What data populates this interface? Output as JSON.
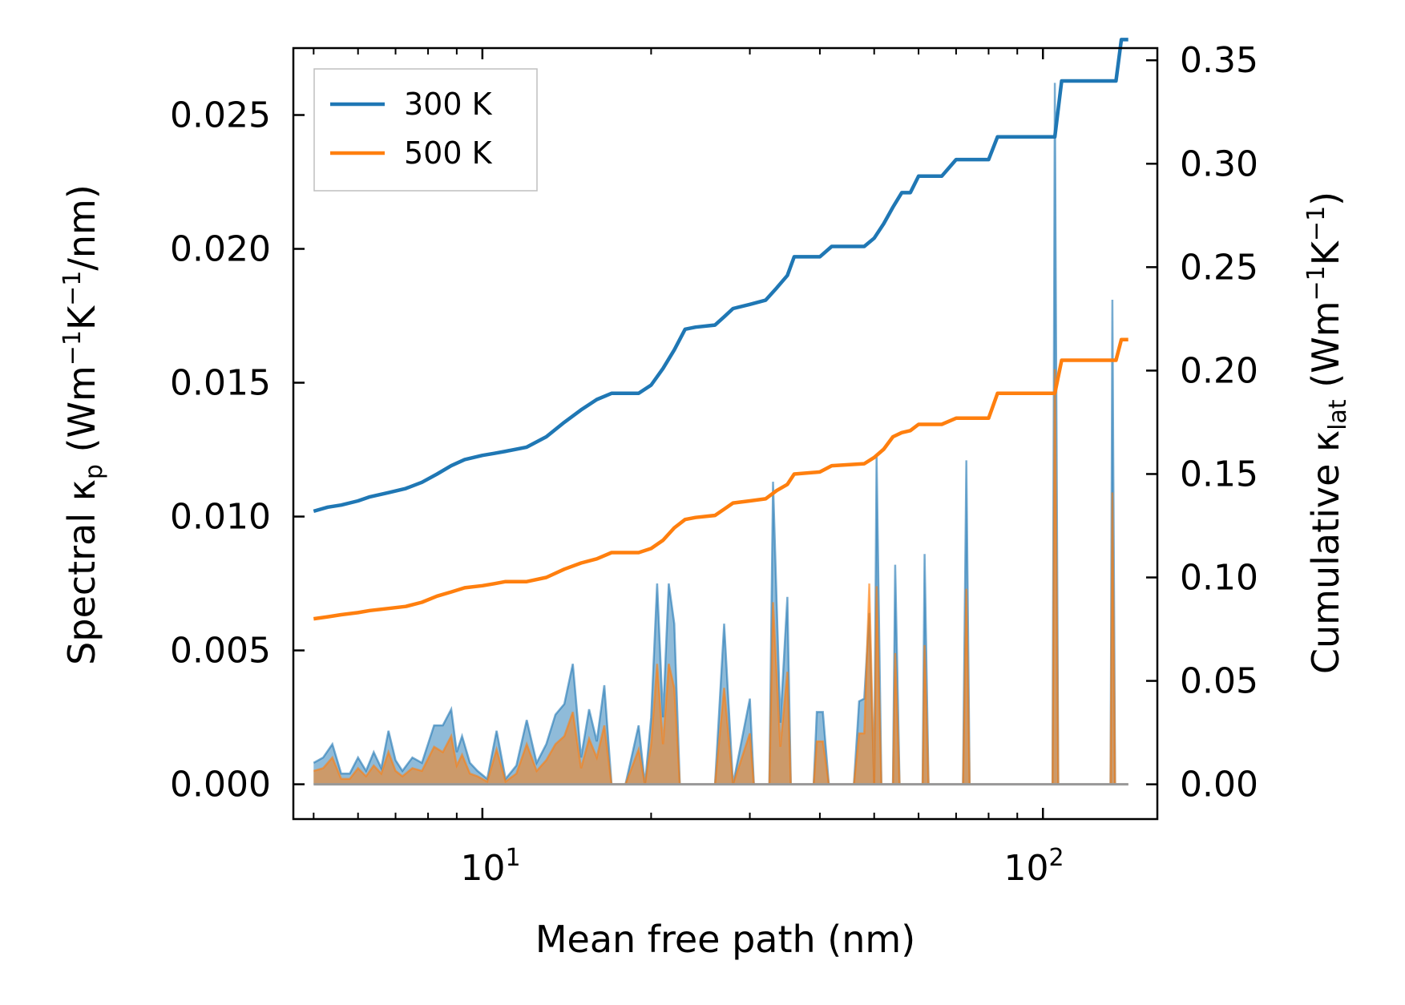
{
  "chart_data": {
    "type": "line",
    "title": "",
    "xlabel": "Mean free path (nm)",
    "xscale": "log",
    "xlim": [
      4.6,
      160
    ],
    "x_tick_labels": [
      {
        "base": "10",
        "exp": "1",
        "value": 10
      },
      {
        "base": "10",
        "exp": "2",
        "value": 100
      }
    ],
    "left_axis": {
      "label_prefix": "Spectral ",
      "label_symbol": "κ",
      "label_symbol_sub": "p",
      "label_unit_parts": [
        " (Wm",
        "−1",
        "K",
        "−1",
        "/nm)"
      ],
      "ylim": [
        -0.0013,
        0.0275
      ],
      "ticks": [
        "0.000",
        "0.005",
        "0.010",
        "0.015",
        "0.020",
        "0.025"
      ],
      "tick_values": [
        0,
        0.005,
        0.01,
        0.015,
        0.02,
        0.025
      ]
    },
    "right_axis": {
      "label_prefix": "Cumulative ",
      "label_symbol": "κ",
      "label_symbol_sub": "lat",
      "label_unit_parts": [
        " (Wm",
        "−1",
        "K",
        "−1",
        ")"
      ],
      "ylim": [
        -0.0168,
        0.3559
      ],
      "ticks": [
        "0.00",
        "0.05",
        "0.10",
        "0.15",
        "0.20",
        "0.25",
        "0.30",
        "0.35"
      ],
      "tick_values": [
        0,
        0.05,
        0.1,
        0.15,
        0.2,
        0.25,
        0.3,
        0.35
      ]
    },
    "legend": {
      "position": "top-left",
      "entries": [
        {
          "label": "300 K",
          "color": "#1f77b4"
        },
        {
          "label": "500 K",
          "color": "#ff7f0e"
        }
      ]
    },
    "series": [
      {
        "name": "300 K",
        "color": "#1f77b4",
        "cumulative_kappa": [
          [
            5.0,
            0.132
          ],
          [
            5.3,
            0.134
          ],
          [
            5.6,
            0.135
          ],
          [
            6.0,
            0.137
          ],
          [
            6.3,
            0.139
          ],
          [
            6.8,
            0.141
          ],
          [
            7.3,
            0.143
          ],
          [
            7.8,
            0.146
          ],
          [
            8.3,
            0.15
          ],
          [
            8.8,
            0.154
          ],
          [
            9.3,
            0.157
          ],
          [
            10.0,
            0.159
          ],
          [
            10.5,
            0.16
          ],
          [
            11.0,
            0.161
          ],
          [
            12.0,
            0.163
          ],
          [
            13.0,
            0.168
          ],
          [
            14.0,
            0.175
          ],
          [
            15.0,
            0.181
          ],
          [
            16.0,
            0.186
          ],
          [
            17.0,
            0.189
          ],
          [
            19.0,
            0.189
          ],
          [
            20.0,
            0.193
          ],
          [
            21.0,
            0.201
          ],
          [
            22.0,
            0.21
          ],
          [
            23.0,
            0.22
          ],
          [
            24.0,
            0.221
          ],
          [
            26.0,
            0.222
          ],
          [
            27.0,
            0.226
          ],
          [
            28.0,
            0.23
          ],
          [
            30.0,
            0.232
          ],
          [
            32.0,
            0.234
          ],
          [
            33.5,
            0.24
          ],
          [
            35.0,
            0.246
          ],
          [
            36.0,
            0.255
          ],
          [
            40.0,
            0.255
          ],
          [
            42.0,
            0.26
          ],
          [
            48.0,
            0.26
          ],
          [
            50.0,
            0.264
          ],
          [
            52.0,
            0.271
          ],
          [
            54.0,
            0.279
          ],
          [
            56.0,
            0.286
          ],
          [
            58.0,
            0.286
          ],
          [
            60.0,
            0.294
          ],
          [
            66.0,
            0.294
          ],
          [
            70.0,
            0.302
          ],
          [
            80.0,
            0.302
          ],
          [
            83.0,
            0.313
          ],
          [
            105.0,
            0.313
          ],
          [
            108.0,
            0.34
          ],
          [
            135.0,
            0.34
          ],
          [
            138.0,
            0.36
          ],
          [
            142.0,
            0.36
          ]
        ],
        "spectral_kappa": [
          [
            5.0,
            0.0008
          ],
          [
            5.2,
            0.001
          ],
          [
            5.4,
            0.0015
          ],
          [
            5.6,
            0.0004
          ],
          [
            5.8,
            0.0004
          ],
          [
            6.0,
            0.001
          ],
          [
            6.2,
            0.0005
          ],
          [
            6.4,
            0.0012
          ],
          [
            6.6,
            0.0006
          ],
          [
            6.8,
            0.002
          ],
          [
            7.0,
            0.0009
          ],
          [
            7.2,
            0.0005
          ],
          [
            7.5,
            0.001
          ],
          [
            7.8,
            0.0008
          ],
          [
            8.2,
            0.0022
          ],
          [
            8.5,
            0.0022
          ],
          [
            8.8,
            0.0028
          ],
          [
            9.0,
            0.0012
          ],
          [
            9.2,
            0.0018
          ],
          [
            9.5,
            0.0008
          ],
          [
            9.8,
            0.0005
          ],
          [
            10.2,
            0.0002
          ],
          [
            10.6,
            0.002
          ],
          [
            11.0,
            0.0002
          ],
          [
            11.5,
            0.0007
          ],
          [
            12.0,
            0.0024
          ],
          [
            12.5,
            0.0008
          ],
          [
            13.0,
            0.0015
          ],
          [
            13.5,
            0.0026
          ],
          [
            14.0,
            0.003
          ],
          [
            14.5,
            0.0045
          ],
          [
            15.0,
            0.001
          ],
          [
            15.5,
            0.0028
          ],
          [
            16.0,
            0.0016
          ],
          [
            16.5,
            0.0037
          ],
          [
            17.0,
            0.0
          ],
          [
            18.0,
            0.0
          ],
          [
            19.0,
            0.0022
          ],
          [
            19.5,
            0.0
          ],
          [
            20.0,
            0.0025
          ],
          [
            20.5,
            0.0075
          ],
          [
            21.0,
            0.0025
          ],
          [
            21.5,
            0.0075
          ],
          [
            22.0,
            0.006
          ],
          [
            22.5,
            0.0
          ],
          [
            26.0,
            0.0
          ],
          [
            27.0,
            0.006
          ],
          [
            28.0,
            0.0
          ],
          [
            30.0,
            0.0032
          ],
          [
            30.5,
            0.0
          ],
          [
            32.5,
            0.0
          ],
          [
            33.0,
            0.0113
          ],
          [
            34.0,
            0.0023
          ],
          [
            35.0,
            0.007
          ],
          [
            35.5,
            0.0
          ],
          [
            39.0,
            0.0
          ],
          [
            39.5,
            0.0027
          ],
          [
            40.5,
            0.0027
          ],
          [
            41.5,
            0.0
          ],
          [
            46.0,
            0.0
          ],
          [
            47.0,
            0.0031
          ],
          [
            48.0,
            0.0032
          ],
          [
            49.0,
            0.0064
          ],
          [
            50.0,
            0.0
          ],
          [
            50.5,
            0.0123
          ],
          [
            51.5,
            0.0
          ],
          [
            54.0,
            0.0
          ],
          [
            54.5,
            0.0082
          ],
          [
            55.5,
            0.0
          ],
          [
            61.0,
            0.0
          ],
          [
            61.5,
            0.0086
          ],
          [
            62.5,
            0.0
          ],
          [
            72.0,
            0.0
          ],
          [
            73.0,
            0.0121
          ],
          [
            74.0,
            0.0
          ],
          [
            104.0,
            0.0
          ],
          [
            105.0,
            0.0262
          ],
          [
            106.5,
            0.0
          ],
          [
            132.0,
            0.0
          ],
          [
            133.0,
            0.0181
          ],
          [
            134.5,
            0.0
          ],
          [
            142.0,
            0.0
          ]
        ]
      },
      {
        "name": "500 K",
        "color": "#ff7f0e",
        "cumulative_kappa": [
          [
            5.0,
            0.08
          ],
          [
            5.3,
            0.081
          ],
          [
            5.6,
            0.082
          ],
          [
            6.0,
            0.083
          ],
          [
            6.3,
            0.084
          ],
          [
            6.8,
            0.085
          ],
          [
            7.3,
            0.086
          ],
          [
            7.8,
            0.088
          ],
          [
            8.3,
            0.091
          ],
          [
            8.8,
            0.093
          ],
          [
            9.3,
            0.095
          ],
          [
            10.0,
            0.096
          ],
          [
            10.5,
            0.097
          ],
          [
            11.0,
            0.098
          ],
          [
            12.0,
            0.098
          ],
          [
            13.0,
            0.1
          ],
          [
            14.0,
            0.104
          ],
          [
            15.0,
            0.107
          ],
          [
            16.0,
            0.109
          ],
          [
            17.0,
            0.112
          ],
          [
            19.0,
            0.112
          ],
          [
            20.0,
            0.114
          ],
          [
            21.0,
            0.118
          ],
          [
            22.0,
            0.124
          ],
          [
            23.0,
            0.128
          ],
          [
            24.0,
            0.129
          ],
          [
            26.0,
            0.13
          ],
          [
            27.0,
            0.133
          ],
          [
            28.0,
            0.136
          ],
          [
            30.0,
            0.137
          ],
          [
            32.0,
            0.138
          ],
          [
            33.5,
            0.142
          ],
          [
            35.0,
            0.145
          ],
          [
            36.0,
            0.15
          ],
          [
            40.0,
            0.151
          ],
          [
            42.0,
            0.154
          ],
          [
            48.0,
            0.155
          ],
          [
            50.0,
            0.158
          ],
          [
            52.0,
            0.162
          ],
          [
            54.0,
            0.168
          ],
          [
            56.0,
            0.17
          ],
          [
            58.0,
            0.171
          ],
          [
            60.0,
            0.174
          ],
          [
            66.0,
            0.174
          ],
          [
            70.0,
            0.177
          ],
          [
            80.0,
            0.177
          ],
          [
            83.0,
            0.189
          ],
          [
            105.0,
            0.189
          ],
          [
            108.0,
            0.205
          ],
          [
            135.0,
            0.205
          ],
          [
            138.0,
            0.215
          ],
          [
            142.0,
            0.215
          ]
        ],
        "spectral_kappa": [
          [
            5.0,
            0.0005
          ],
          [
            5.2,
            0.0006
          ],
          [
            5.4,
            0.001
          ],
          [
            5.6,
            0.0002
          ],
          [
            5.8,
            0.0002
          ],
          [
            6.0,
            0.0006
          ],
          [
            6.2,
            0.0003
          ],
          [
            6.4,
            0.0007
          ],
          [
            6.6,
            0.0004
          ],
          [
            6.8,
            0.0012
          ],
          [
            7.0,
            0.0005
          ],
          [
            7.2,
            0.0003
          ],
          [
            7.5,
            0.0006
          ],
          [
            7.8,
            0.0005
          ],
          [
            8.2,
            0.0014
          ],
          [
            8.5,
            0.0012
          ],
          [
            8.8,
            0.0018
          ],
          [
            9.0,
            0.0007
          ],
          [
            9.2,
            0.0011
          ],
          [
            9.5,
            0.0004
          ],
          [
            9.8,
            0.0003
          ],
          [
            10.2,
            0.0001
          ],
          [
            10.6,
            0.0013
          ],
          [
            11.0,
            0.0001
          ],
          [
            11.5,
            0.0004
          ],
          [
            12.0,
            0.0015
          ],
          [
            12.5,
            0.0005
          ],
          [
            13.0,
            0.0009
          ],
          [
            13.5,
            0.0015
          ],
          [
            14.0,
            0.0018
          ],
          [
            14.5,
            0.0027
          ],
          [
            15.0,
            0.0006
          ],
          [
            15.5,
            0.0017
          ],
          [
            16.0,
            0.001
          ],
          [
            16.5,
            0.0022
          ],
          [
            17.0,
            0.0
          ],
          [
            18.0,
            0.0
          ],
          [
            19.0,
            0.0013
          ],
          [
            19.5,
            0.0
          ],
          [
            20.0,
            0.0015
          ],
          [
            20.5,
            0.0045
          ],
          [
            21.0,
            0.0015
          ],
          [
            21.5,
            0.0045
          ],
          [
            22.0,
            0.0036
          ],
          [
            22.5,
            0.0
          ],
          [
            26.0,
            0.0
          ],
          [
            27.0,
            0.0036
          ],
          [
            28.0,
            0.0
          ],
          [
            30.0,
            0.0019
          ],
          [
            30.5,
            0.0
          ],
          [
            32.5,
            0.0
          ],
          [
            33.0,
            0.0068
          ],
          [
            34.0,
            0.0014
          ],
          [
            35.0,
            0.0042
          ],
          [
            35.5,
            0.0
          ],
          [
            39.0,
            0.0
          ],
          [
            39.5,
            0.0016
          ],
          [
            40.5,
            0.0016
          ],
          [
            41.5,
            0.0
          ],
          [
            46.0,
            0.0
          ],
          [
            47.0,
            0.0019
          ],
          [
            48.0,
            0.0019
          ],
          [
            49.0,
            0.0075
          ],
          [
            50.0,
            0.0
          ],
          [
            50.5,
            0.0074
          ],
          [
            51.5,
            0.0
          ],
          [
            54.0,
            0.0
          ],
          [
            54.5,
            0.0049
          ],
          [
            55.5,
            0.0
          ],
          [
            61.0,
            0.0
          ],
          [
            61.5,
            0.0052
          ],
          [
            62.5,
            0.0
          ],
          [
            72.0,
            0.0
          ],
          [
            73.0,
            0.0073
          ],
          [
            74.0,
            0.0
          ],
          [
            104.0,
            0.0
          ],
          [
            105.0,
            0.0155
          ],
          [
            106.5,
            0.0
          ],
          [
            132.0,
            0.0
          ],
          [
            133.0,
            0.0109
          ],
          [
            134.5,
            0.0
          ],
          [
            142.0,
            0.0
          ]
        ]
      }
    ]
  }
}
